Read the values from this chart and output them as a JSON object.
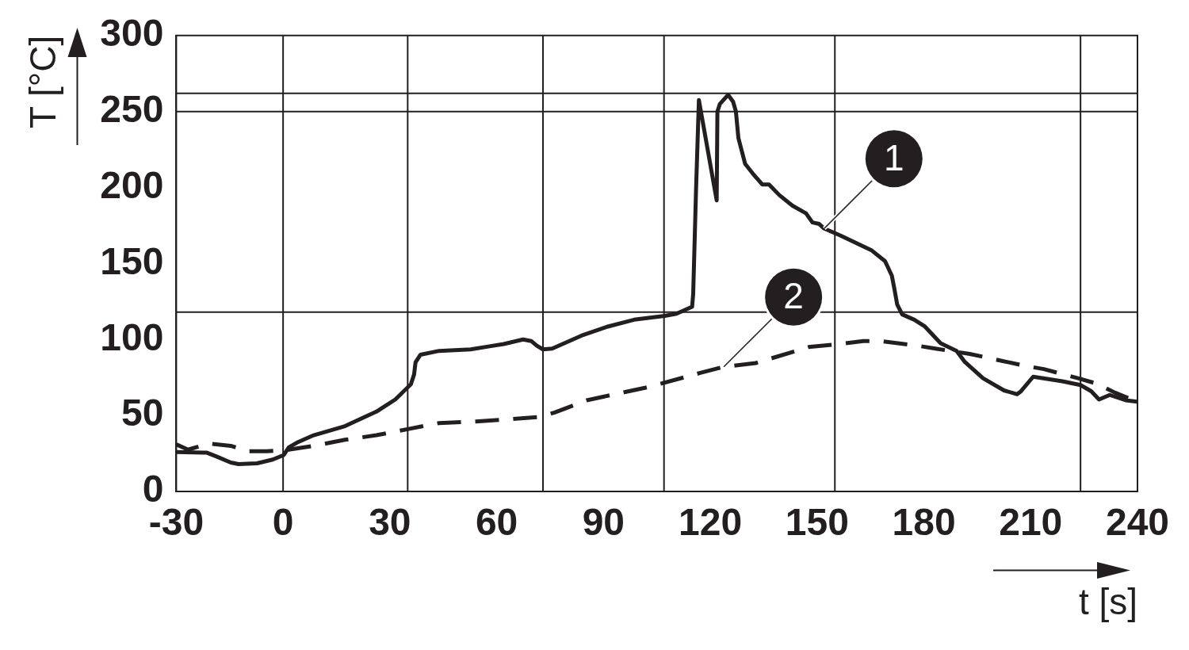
{
  "chart_data": {
    "type": "line",
    "xlabel": "t [s]",
    "ylabel": "T [°C]",
    "xlim": [
      -30,
      240
    ],
    "xticks": [
      -30,
      0,
      30,
      60,
      90,
      120,
      150,
      180,
      210,
      240
    ],
    "ylim": [
      0,
      300
    ],
    "yticks": [
      0,
      50,
      100,
      150,
      200,
      250,
      300
    ],
    "grid": false,
    "legend": false,
    "marker": "none",
    "series": [
      {
        "color": "#231f20",
        "line_style": "solid",
        "x": [
          -30,
          -21.4,
          -18.7,
          -14.7,
          -12.5,
          -7.3,
          -2.9,
          0.2,
          1.6,
          4.2,
          8.6,
          17.4,
          26.2,
          31.5,
          35.9,
          36.8,
          37.2,
          38.6,
          43.8,
          52.7,
          58,
          62,
          67.4,
          69.7,
          71.2,
          73,
          75.6,
          83.8,
          91.2,
          98.6,
          107.2,
          110.5,
          114.9,
          115.2,
          116,
          116.8,
          121.8,
          122,
          122.7,
          125,
          126.4,
          127.2,
          127.9,
          129.8,
          132,
          134.6,
          136.5,
          139.4,
          143.1,
          146.9,
          148.7,
          150.6,
          152,
          156.5,
          165.4,
          169.1,
          171,
          171.7,
          172.5,
          173.9,
          177.3,
          180.3,
          184.7,
          189.2,
          191.4,
          196.6,
          202.5,
          206.2,
          207.3,
          210.7,
          218.9,
          224,
          227,
          229.2,
          232.2,
          236.7,
          240
        ],
        "values": [
          26,
          25.5,
          23,
          19,
          18,
          18.5,
          21,
          24,
          29,
          32.5,
          37,
          43,
          52.5,
          60.5,
          70.5,
          77,
          85,
          90,
          92.5,
          93.5,
          95.5,
          97,
          100,
          99,
          96,
          93.5,
          94,
          102.5,
          108.5,
          113,
          115.5,
          117,
          121.5,
          130,
          198.5,
          257.5,
          191.5,
          250,
          255,
          261,
          256.5,
          250,
          232.5,
          215.5,
          209,
          202,
          202,
          195,
          188,
          183,
          177,
          176,
          173,
          168.5,
          158.5,
          151.5,
          142,
          133.5,
          123,
          116.5,
          113,
          108.5,
          97.5,
          92.5,
          85.5,
          74.5,
          66.5,
          64,
          66,
          75.5,
          72.5,
          70,
          66,
          60.5,
          63.5,
          60,
          59
        ]
      },
      {
        "color": "#231f20",
        "line_style": "dashed",
        "x": [
          -30,
          -26.7,
          -20.9,
          -14.7,
          -9.9,
          -4.6,
          0.2,
          8.6,
          17.4,
          26.2,
          35,
          43.8,
          54.1,
          72.3,
          76.3,
          85.3,
          102.3,
          117.2,
          123.8,
          132.8,
          147.6,
          156.5,
          163,
          167.6,
          178,
          183.2,
          192.9,
          207.7,
          213.7,
          223.3,
          228.5,
          233.7,
          240
        ],
        "values": [
          31,
          27.5,
          31.5,
          30,
          26.5,
          26.5,
          27,
          30,
          34,
          37,
          41,
          45,
          46,
          49,
          52,
          60,
          68.5,
          78,
          82,
          84.5,
          95,
          97,
          99,
          99,
          96,
          94,
          90.5,
          83,
          80.5,
          74.5,
          71,
          65,
          59
        ]
      }
    ],
    "annotations": [
      {
        "text": "1",
        "x": 152,
        "y": 173
      },
      {
        "text": "2",
        "x": 123.8,
        "y": 82
      }
    ],
    "ref_lines": [
      {
        "axis": "x",
        "value": 0,
        "color": "#231f20"
      },
      {
        "axis": "x",
        "value": 35,
        "color": "#231f20"
      },
      {
        "axis": "x",
        "value": 73,
        "color": "#231f20"
      },
      {
        "axis": "x",
        "value": 107,
        "color": "#231f20"
      },
      {
        "axis": "x",
        "value": 155,
        "color": "#231f20"
      },
      {
        "axis": "x",
        "value": 224,
        "color": "#231f20"
      },
      {
        "axis": "y",
        "value": 262,
        "color": "#231f20"
      },
      {
        "axis": "y",
        "value": 250,
        "color": "#231f20"
      },
      {
        "axis": "y",
        "value": 118,
        "color": "#231f20"
      }
    ]
  }
}
